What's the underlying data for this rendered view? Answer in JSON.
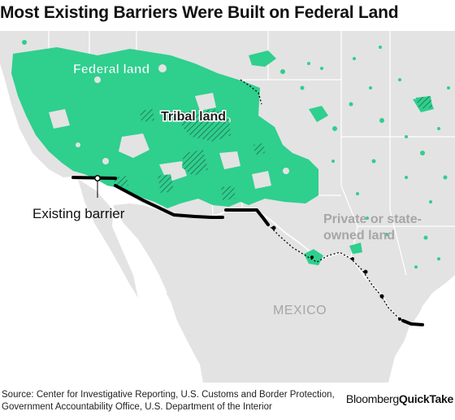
{
  "title": "Most Existing Barriers Were Built on Federal Land",
  "map": {
    "labels": {
      "federal": "Federal land",
      "tribal": "Tribal land",
      "private_line1": "Private or state-",
      "private_line2": "owned land",
      "mexico": "MEXICO",
      "barrier": "Existing barrier"
    },
    "colors": {
      "federal": "#2fcf8e",
      "tribal_hatch": "#1d6b4a",
      "land": "#e3e3e3",
      "water": "#ffffff",
      "border": "#ffffff",
      "barrier": "#000000",
      "label_gray": "#a6a6a6"
    }
  },
  "footer": {
    "source_line1": "Source: Center for Investigative Reporting, U.S. Customs and Border Protection,",
    "source_line2": "Government Accountability Office, U.S. Department of the Interior",
    "brand_regular": "Bloomberg",
    "brand_bold": "QuickTake"
  }
}
